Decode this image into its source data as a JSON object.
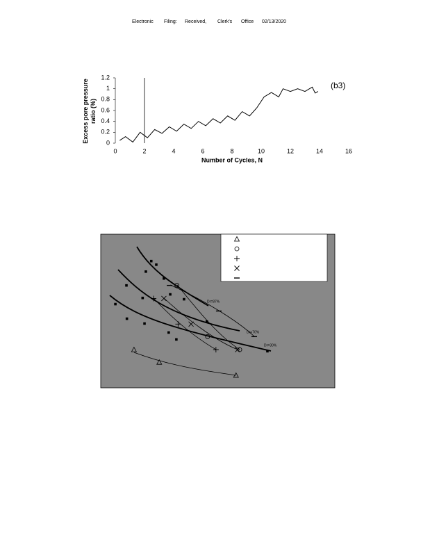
{
  "header": {
    "words": [
      "Electronic",
      "Filing:",
      "Received,",
      "Clerk's",
      "Office",
      "02/13/2020"
    ]
  },
  "chart_data": [
    {
      "type": "line",
      "annotation": "(b3)",
      "y_label": "Excess pore pressure ratio (%)",
      "x_label": "Number of Cycles, N",
      "xlim": [
        0,
        16
      ],
      "xticks": [
        0,
        2,
        4,
        6,
        8,
        10,
        12,
        14,
        16
      ],
      "ylim": [
        0,
        1.2
      ],
      "yticks": [
        0,
        0.2,
        0.4,
        0.6,
        0.8,
        1,
        1.2
      ],
      "marker_line_x": 2,
      "x": [
        0.3,
        0.7,
        1.2,
        1.7,
        2.2,
        2.7,
        3.2,
        3.7,
        4.2,
        4.7,
        5.2,
        5.7,
        6.2,
        6.7,
        7.2,
        7.7,
        8.2,
        8.7,
        9.2,
        9.7,
        10.2,
        10.7,
        11.2,
        11.5,
        12,
        12.5,
        13,
        13.5,
        13.7,
        13.9
      ],
      "series": [
        {
          "color": "#000000",
          "values": [
            0.05,
            0.12,
            0.02,
            0.2,
            0.1,
            0.25,
            0.18,
            0.3,
            0.22,
            0.35,
            0.27,
            0.4,
            0.32,
            0.45,
            0.37,
            0.5,
            0.42,
            0.58,
            0.5,
            0.65,
            0.85,
            0.93,
            0.85,
            1.0,
            0.95,
            1.0,
            0.95,
            1.03,
            0.92,
            0.95
          ]
        }
      ]
    },
    {
      "type": "scatter",
      "log_x": true,
      "xlim": [
        1,
        10000
      ],
      "ylim": [
        0,
        6
      ],
      "annotations": [
        "Dr=87%",
        "Dr=70%",
        "Dr=30%"
      ],
      "series": [
        {
          "marker": "triangle",
          "color": "#000000",
          "x": [
            3.7,
            10,
            205
          ],
          "values": [
            1.49,
            1.0,
            0.49
          ]
        },
        {
          "marker": "circle",
          "color": "#000000",
          "x": [
            20,
            67,
            237
          ],
          "values": [
            4.0,
            2.0,
            1.49
          ]
        },
        {
          "marker": "plus",
          "color": "#000000",
          "x": [
            8,
            21,
            93
          ],
          "values": [
            3.49,
            2.49,
            1.49
          ]
        },
        {
          "marker": "cross",
          "color": "#000000",
          "x": [
            12,
            35,
            218
          ],
          "values": [
            3.49,
            2.49,
            1.49
          ]
        },
        {
          "marker": "dash",
          "color": "#000000",
          "x": [
            15,
            104,
            420
          ],
          "values": [
            4.0,
            3.0,
            2.0
          ]
        },
        {
          "marker": "dot",
          "color": "#000000",
          "x": [
            7.3,
            8.9,
            5.9,
            12,
            2.75,
            5.2,
            1.78,
            2.8,
            5.6,
            14.5,
            19.6,
            26.5,
            15.4,
            65,
            705
          ],
          "values": [
            4.95,
            4.81,
            4.54,
            4.27,
            4.0,
            3.51,
            3.27,
            2.7,
            2.51,
            2.16,
            1.89,
            3.46,
            3.65,
            2.59,
            1.43
          ]
        }
      ]
    }
  ]
}
